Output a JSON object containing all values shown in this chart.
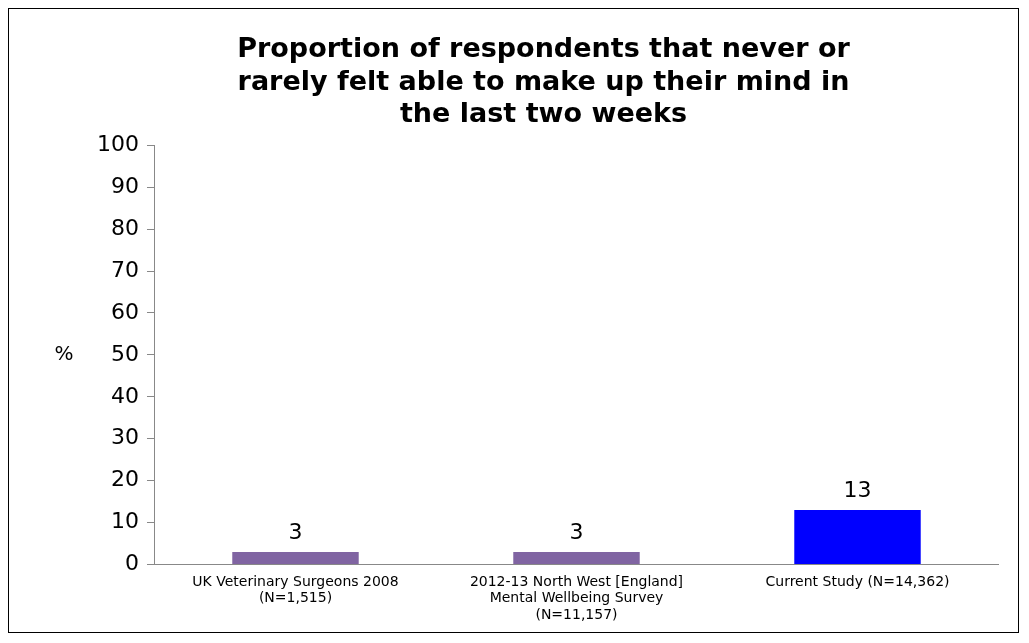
{
  "chart_data": {
    "type": "bar",
    "title": "Proportion of respondents that never or rarely felt able to make up their mind in the last two weeks",
    "ylabel": "%",
    "categories": [
      "UK Veterinary Surgeons 2008 (N=1,515)",
      "2012-13 North West [England] Mental Wellbeing Survey (N=11,157)",
      "Current Study (N=14,362)"
    ],
    "values": [
      3,
      3,
      13
    ],
    "colors": [
      "#8064a2",
      "#8064a2",
      "#0000ff"
    ],
    "ylim": [
      0,
      100
    ],
    "yticks": [
      0,
      10,
      20,
      30,
      40,
      50,
      60,
      70,
      80,
      90,
      100
    ],
    "grid": false,
    "legend": false,
    "data_labels": true
  }
}
